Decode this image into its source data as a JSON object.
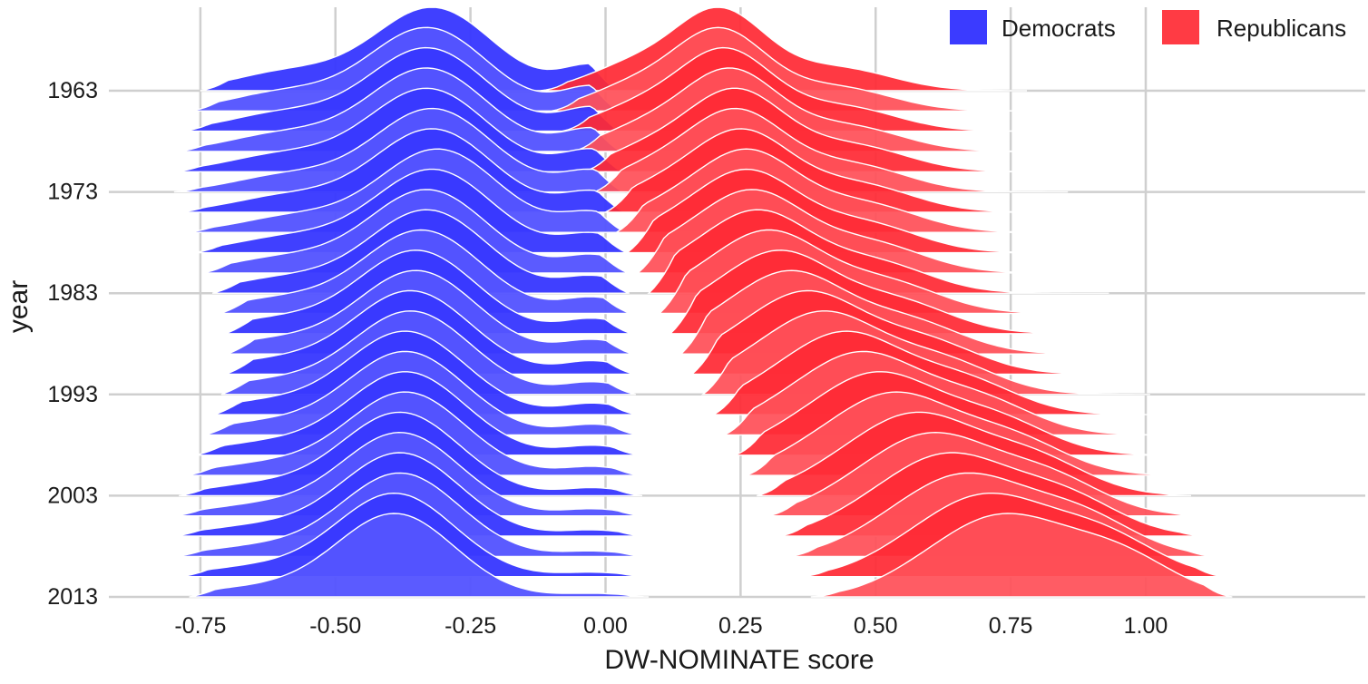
{
  "chart_data": {
    "type": "ridgeline",
    "title": "",
    "xlabel": "DW-NOMINATE score",
    "ylabel": "year",
    "xlim": [
      -0.85,
      1.25
    ],
    "x_ticks": [
      "-0.75",
      "-0.50",
      "-0.25",
      "0.00",
      "0.25",
      "0.50",
      "0.75",
      "1.00"
    ],
    "x_tick_values": [
      -0.75,
      -0.5,
      -0.25,
      0.0,
      0.25,
      0.5,
      0.75,
      1.0
    ],
    "y_ticks": [
      "1963",
      "1973",
      "1983",
      "1993",
      "2003",
      "2013"
    ],
    "years": [
      1963,
      1965,
      1967,
      1969,
      1971,
      1973,
      1975,
      1977,
      1979,
      1981,
      1983,
      1985,
      1987,
      1989,
      1991,
      1993,
      1995,
      1997,
      1999,
      2001,
      2003,
      2005,
      2007,
      2009,
      2011,
      2013
    ],
    "grid": true,
    "legend_position": "top-right",
    "series": [
      {
        "name": "Democrats",
        "color": "#3b3bff",
        "peak_mean": [
          -0.32,
          -0.33,
          -0.33,
          -0.33,
          -0.33,
          -0.32,
          -0.32,
          -0.31,
          -0.32,
          -0.33,
          -0.33,
          -0.34,
          -0.35,
          -0.35,
          -0.36,
          -0.36,
          -0.37,
          -0.37,
          -0.37,
          -0.37,
          -0.38,
          -0.38,
          -0.38,
          -0.38,
          -0.39,
          -0.39
        ]
      },
      {
        "name": "Republicans",
        "color": "#ff3b44",
        "peak_mean": [
          0.21,
          0.21,
          0.22,
          0.23,
          0.24,
          0.24,
          0.25,
          0.26,
          0.26,
          0.27,
          0.28,
          0.3,
          0.32,
          0.34,
          0.37,
          0.4,
          0.44,
          0.47,
          0.5,
          0.53,
          0.57,
          0.6,
          0.63,
          0.66,
          0.7,
          0.73
        ]
      }
    ]
  }
}
